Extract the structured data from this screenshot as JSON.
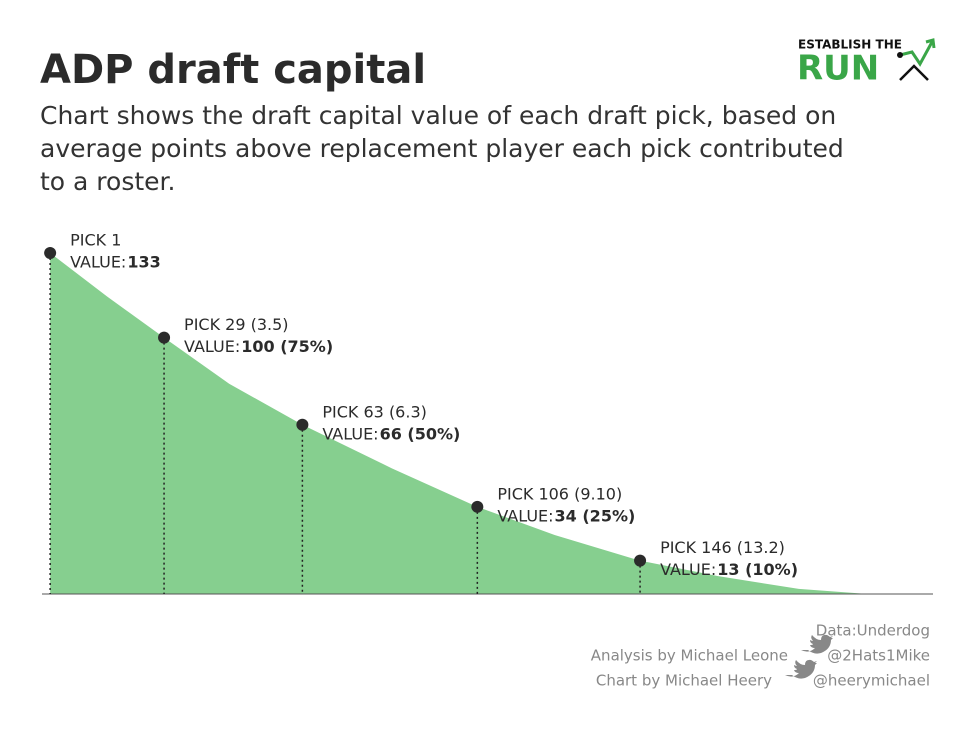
{
  "chart_data": {
    "type": "area",
    "title": "ADP draft capital",
    "subtitle_lines": [
      "Chart shows the draft capital value of each draft pick, based on",
      "average points above replacement player each pick contributed",
      "to a roster."
    ],
    "x": [
      1,
      15,
      29,
      45,
      63,
      85,
      106,
      125,
      146,
      165,
      185,
      202
    ],
    "values": [
      133,
      116,
      100,
      82,
      66,
      49,
      34,
      23,
      13,
      7,
      2,
      0
    ],
    "point_labels": [
      "PICK 1",
      null,
      "PICK 29 (3.5)",
      null,
      "PICK 63 (6.3)",
      null,
      "PICK 106 (9.10)",
      null,
      "PICK 146 (13.2)",
      null,
      null,
      null
    ],
    "value_labels": [
      "133",
      null,
      "100 (75%)",
      null,
      "66 (50%)",
      null,
      "34 (25%)",
      null,
      "13 (10%)",
      null,
      null,
      null
    ],
    "value_prefix": "VALUE:",
    "color": "#86cf8f",
    "marker_color": "#2b2b2b",
    "xlim": [
      -1,
      218
    ],
    "ylim": [
      0,
      140
    ],
    "logo": {
      "top": "ESTABLISH THE",
      "main": "RUN"
    },
    "credits": {
      "data": "Data:Underdog",
      "analysis": "Analysis by Michael Leone",
      "analysis_handle": "@2Hats1Mike",
      "chart": "Chart by Michael Heery",
      "chart_handle": "@heerymichael"
    }
  }
}
